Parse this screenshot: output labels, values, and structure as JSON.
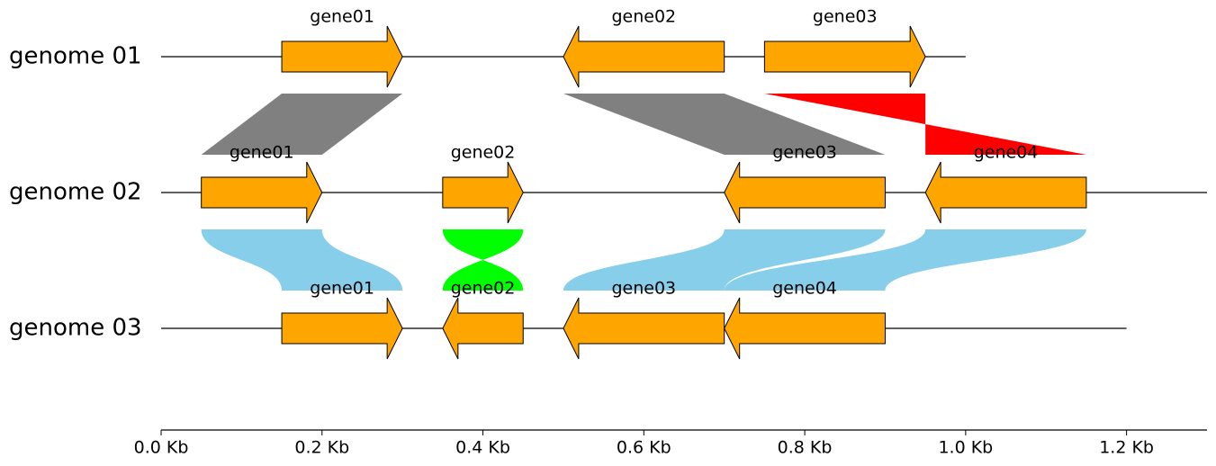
{
  "tracks": [
    {
      "name": "genome 01",
      "size": 1000,
      "features": [
        {
          "label": "gene01",
          "start": 150,
          "end": 300,
          "strand": 1
        },
        {
          "label": "gene02",
          "start": 500,
          "end": 700,
          "strand": -1
        },
        {
          "label": "gene03",
          "start": 750,
          "end": 950,
          "strand": 1
        }
      ]
    },
    {
      "name": "genome 02",
      "size": 1300,
      "features": [
        {
          "label": "gene01",
          "start": 50,
          "end": 200,
          "strand": 1
        },
        {
          "label": "gene02",
          "start": 350,
          "end": 450,
          "strand": 1
        },
        {
          "label": "gene03",
          "start": 700,
          "end": 900,
          "strand": -1
        },
        {
          "label": "gene04",
          "start": 950,
          "end": 1150,
          "strand": -1
        }
      ]
    },
    {
      "name": "genome 03",
      "size": 1200,
      "features": [
        {
          "label": "gene01",
          "start": 150,
          "end": 300,
          "strand": 1
        },
        {
          "label": "gene02",
          "start": 350,
          "end": 450,
          "strand": -1
        },
        {
          "label": "gene03",
          "start": 500,
          "end": 700,
          "strand": -1
        },
        {
          "label": "gene04",
          "start": 700,
          "end": 900,
          "strand": -1
        }
      ]
    }
  ],
  "feature_color": "orange",
  "link_rows": [
    {
      "curve": false,
      "links": [
        {
          "from": [
            150,
            300
          ],
          "to": [
            50,
            200
          ],
          "color": "grey"
        },
        {
          "from": [
            500,
            700
          ],
          "to": [
            700,
            900
          ],
          "color": "grey"
        },
        {
          "from": [
            750,
            950
          ],
          "to": [
            1150,
            950
          ],
          "color": "red"
        }
      ]
    },
    {
      "curve": true,
      "links": [
        {
          "from": [
            50,
            200
          ],
          "to": [
            150,
            300
          ],
          "color": "skyblue"
        },
        {
          "from": [
            350,
            450
          ],
          "to": [
            450,
            350
          ],
          "color": "lime"
        },
        {
          "from": [
            700,
            900
          ],
          "to": [
            500,
            700
          ],
          "color": "skyblue"
        },
        {
          "from": [
            950,
            1150
          ],
          "to": [
            700,
            900
          ],
          "color": "skyblue"
        }
      ]
    }
  ],
  "xlim": [
    0,
    1300
  ],
  "xticks": [
    {
      "value": 0,
      "label": "0.0 Kb"
    },
    {
      "value": 200,
      "label": "0.2 Kb"
    },
    {
      "value": 400,
      "label": "0.4 Kb"
    },
    {
      "value": 600,
      "label": "0.6 Kb"
    },
    {
      "value": 800,
      "label": "0.8 Kb"
    },
    {
      "value": 1000,
      "label": "1.0 Kb"
    },
    {
      "value": 1200,
      "label": "1.2 Kb"
    }
  ]
}
